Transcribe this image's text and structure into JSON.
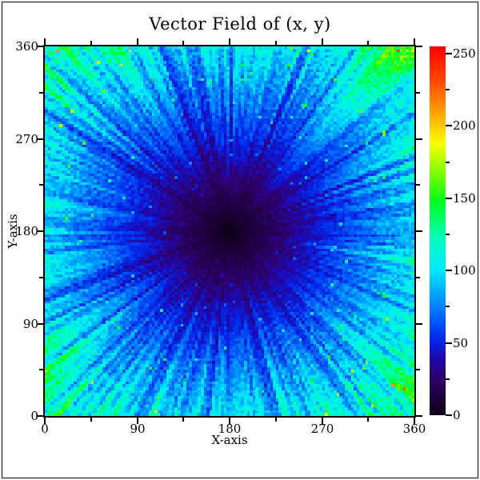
{
  "title": "Vector Field of (x, y)",
  "axes": {
    "x": {
      "label": "X-axis",
      "range": [
        0,
        360
      ],
      "major_ticks": [
        0,
        90,
        180,
        270,
        360
      ],
      "minor_step": 45
    },
    "y": {
      "label": "Y-axis",
      "range": [
        0,
        360
      ],
      "major_ticks": [
        0,
        90,
        180,
        270,
        360
      ],
      "minor_step": 45
    }
  },
  "colorbar": {
    "range": [
      0,
      255
    ],
    "major_ticks": [
      0,
      50,
      100,
      150,
      200,
      250
    ],
    "minor_step": 25
  },
  "colors": {
    "background": "#ffffff",
    "frame": "#000000",
    "text": "#000000"
  },
  "chart_data": {
    "type": "heatmap",
    "title": "Vector Field of (x, y)",
    "xlabel": "X-axis",
    "ylabel": "Y-axis",
    "x_range": [
      0,
      360
    ],
    "y_range": [
      0,
      360
    ],
    "x_ticks": [
      0,
      90,
      180,
      270,
      360
    ],
    "y_ticks": [
      0,
      90,
      180,
      270,
      360
    ],
    "value_range": [
      0,
      255
    ],
    "colorbar_ticks": [
      0,
      50,
      100,
      150,
      200,
      250
    ],
    "center": [
      180,
      180
    ],
    "grid_cells": [
      128,
      128
    ],
    "pattern": "Radial starburst magnitude field: value ~ distance from center (180,180) modulated by fine angular streak noise (factor ~0.23-0.86). Near-black violet core at center, blue ring around it, cyan mid-field, green/yellow radial streaks toward edges, sparse orange-red specks near the corners where distance ~255.",
    "colormap_stops": [
      [
        0,
        14,
        0,
        22
      ],
      [
        26,
        46,
        0,
        106
      ],
      [
        40,
        30,
        10,
        180
      ],
      [
        52,
        0,
        40,
        235
      ],
      [
        75,
        0,
        130,
        255
      ],
      [
        100,
        0,
        232,
        255
      ],
      [
        122,
        0,
        255,
        190
      ],
      [
        148,
        0,
        255,
        30
      ],
      [
        165,
        110,
        255,
        0
      ],
      [
        188,
        250,
        255,
        0
      ],
      [
        210,
        255,
        160,
        0
      ],
      [
        232,
        255,
        70,
        0
      ],
      [
        255,
        255,
        0,
        0
      ]
    ]
  }
}
